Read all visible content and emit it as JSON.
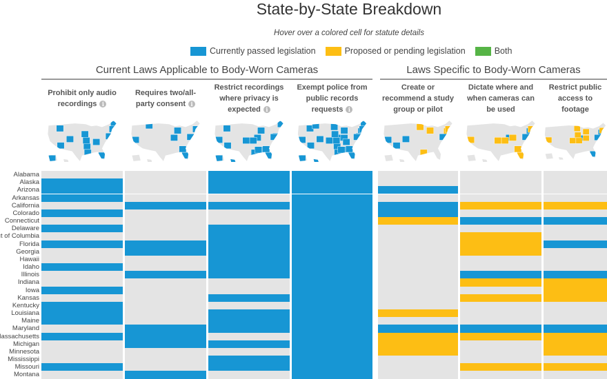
{
  "title": "State-by-State Breakdown",
  "subtitle": "Hover over a colored cell for statute details",
  "legend": [
    {
      "label": "Currently passed legislation",
      "color": "#1796d4"
    },
    {
      "label": "Proposed or pending legislation",
      "color": "#fdbe14"
    },
    {
      "label": "Both",
      "color": "#56b446"
    }
  ],
  "colors": {
    "none": "#e4e4e4",
    "passed": "#1796d4",
    "proposed": "#fdbe14",
    "both": "#56b446"
  },
  "sections": [
    {
      "title": "Current Laws Applicable to Body-Worn Cameras"
    },
    {
      "title": "Laws Specific to Body-Worn Cameras"
    }
  ],
  "chart_data": {
    "type": "heatmap",
    "status_codes": {
      "0": "none",
      "1": "Currently passed legislation",
      "2": "Proposed or pending legislation",
      "3": "Both"
    },
    "rows": [
      "Alabama",
      "Alaska",
      "Arizona",
      "Arkansas",
      "California",
      "Colorado",
      "Connecticut",
      "Delaware",
      "District of Columbia",
      "Florida",
      "Georgia",
      "Hawaii",
      "Idaho",
      "Illinois",
      "Indiana",
      "Iowa",
      "Kansas",
      "Kentucky",
      "Louisiana",
      "Maine",
      "Maryland",
      "Massachusetts",
      "Michigan",
      "Minnesota",
      "Mississippi",
      "Missouri",
      "Montana"
    ],
    "columns": [
      {
        "section": 0,
        "lines": [
          "Prohibit only audio",
          "recordings"
        ],
        "info_icon": true,
        "values": [
          0,
          1,
          1,
          1,
          0,
          1,
          0,
          1,
          0,
          1,
          0,
          0,
          1,
          0,
          0,
          1,
          0,
          1,
          1,
          1,
          0,
          1,
          0,
          0,
          0,
          1,
          0
        ]
      },
      {
        "section": 0,
        "lines": [
          "Requires two/all-",
          "party consent"
        ],
        "info_icon": true,
        "values": [
          0,
          0,
          0,
          0,
          1,
          0,
          0,
          0,
          0,
          1,
          1,
          0,
          0,
          1,
          0,
          0,
          0,
          0,
          0,
          0,
          1,
          1,
          1,
          0,
          0,
          0,
          1
        ]
      },
      {
        "section": 0,
        "lines": [
          "Restrict recordings",
          "where privacy is",
          "expected"
        ],
        "info_icon": true,
        "values": [
          1,
          1,
          1,
          0,
          1,
          0,
          0,
          1,
          1,
          1,
          1,
          1,
          1,
          1,
          0,
          0,
          1,
          0,
          1,
          1,
          1,
          0,
          1,
          0,
          1,
          1,
          0
        ]
      },
      {
        "section": 0,
        "lines": [
          "Exempt police from",
          "public records",
          "requests"
        ],
        "info_icon": true,
        "values": [
          1,
          1,
          1,
          1,
          1,
          1,
          1,
          1,
          1,
          1,
          1,
          1,
          1,
          1,
          1,
          1,
          1,
          1,
          1,
          1,
          1,
          1,
          1,
          1,
          1,
          1,
          1
        ]
      },
      {
        "section": 1,
        "lines": [
          "Create or",
          "recommend a study",
          "group or pilot"
        ],
        "info_icon": false,
        "values": [
          0,
          0,
          1,
          0,
          1,
          1,
          2,
          0,
          0,
          0,
          0,
          0,
          0,
          0,
          0,
          0,
          0,
          0,
          2,
          0,
          1,
          2,
          2,
          2,
          0,
          0,
          0
        ]
      },
      {
        "section": 1,
        "lines": [
          "Dictate where and",
          "when cameras can",
          "be used"
        ],
        "info_icon": false,
        "values": [
          0,
          0,
          0,
          0,
          2,
          0,
          1,
          0,
          2,
          2,
          2,
          0,
          0,
          1,
          2,
          0,
          2,
          0,
          0,
          0,
          1,
          2,
          0,
          0,
          0,
          2,
          0
        ]
      },
      {
        "section": 1,
        "lines": [
          "Restrict public",
          "access to footage"
        ],
        "info_icon": false,
        "values": [
          0,
          0,
          0,
          0,
          2,
          0,
          1,
          0,
          0,
          1,
          0,
          0,
          0,
          1,
          2,
          2,
          2,
          0,
          0,
          0,
          1,
          2,
          2,
          2,
          0,
          2,
          0
        ]
      }
    ]
  }
}
